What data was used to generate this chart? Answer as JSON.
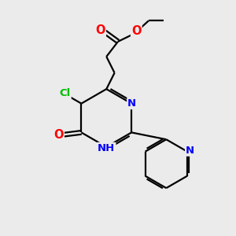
{
  "bg_color": "#ebebeb",
  "bond_color": "#000000",
  "atom_colors": {
    "O": "#ff0000",
    "N": "#0000ff",
    "Cl": "#00bb00",
    "C": "#000000",
    "H": "#000000"
  },
  "figsize": [
    3.0,
    3.0
  ],
  "dpi": 100,
  "lw": 1.6,
  "fontsize": 9.5
}
